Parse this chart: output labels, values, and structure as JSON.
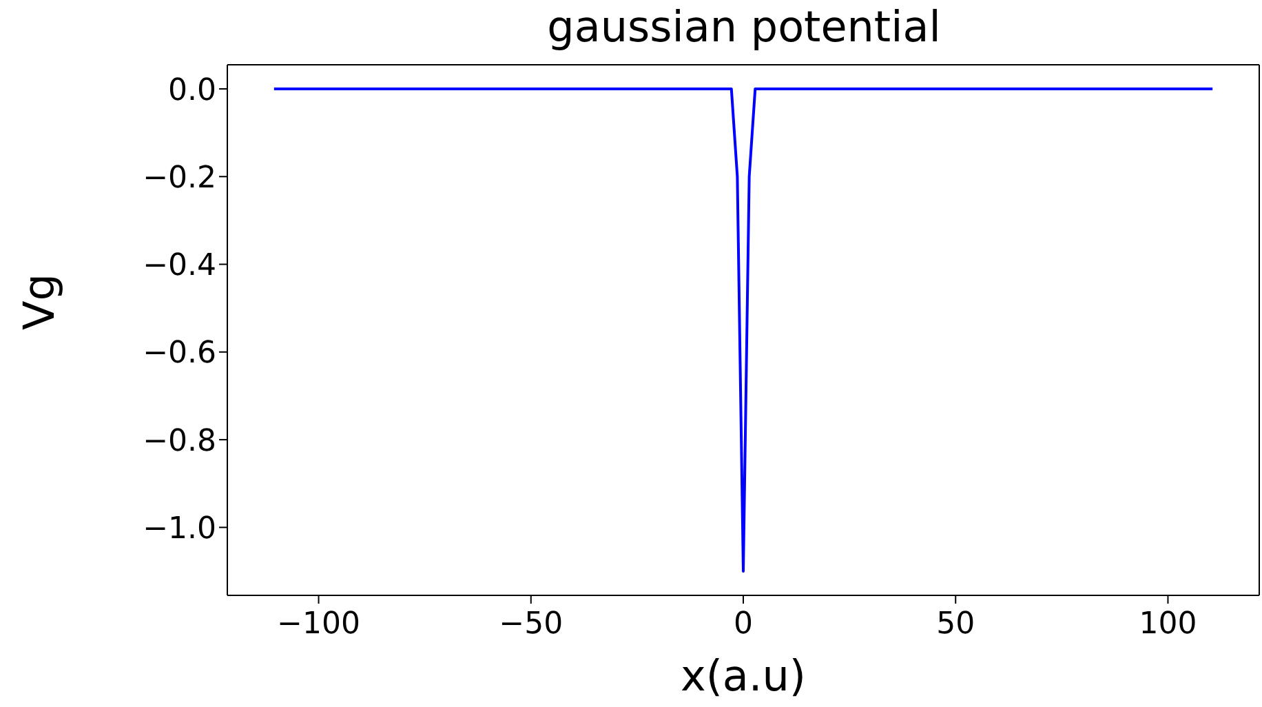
{
  "chart_data": {
    "type": "line",
    "title": "gaussian potential",
    "xlabel": "x(a.u)",
    "ylabel": "Vg",
    "series": [
      {
        "color": "#0000ff",
        "x": [
          -110.5,
          -2.8,
          -1.4,
          0,
          1.4,
          2.8,
          110.5
        ],
        "values": [
          0,
          0,
          -0.2,
          -1.1,
          -0.2,
          0,
          0
        ]
      }
    ],
    "xlim": [
      -121.5,
      121.5
    ],
    "xticks": [
      -100,
      -50,
      0,
      50,
      100
    ],
    "ylim": [
      -1.155,
      0.055
    ],
    "yticks": [
      {
        "value": 0,
        "label": "0.0"
      },
      -0.2,
      -0.4,
      -0.6,
      -0.8,
      {
        "value": -1,
        "label": "−1.0"
      }
    ],
    "marker": "none",
    "line_style": "solid"
  }
}
